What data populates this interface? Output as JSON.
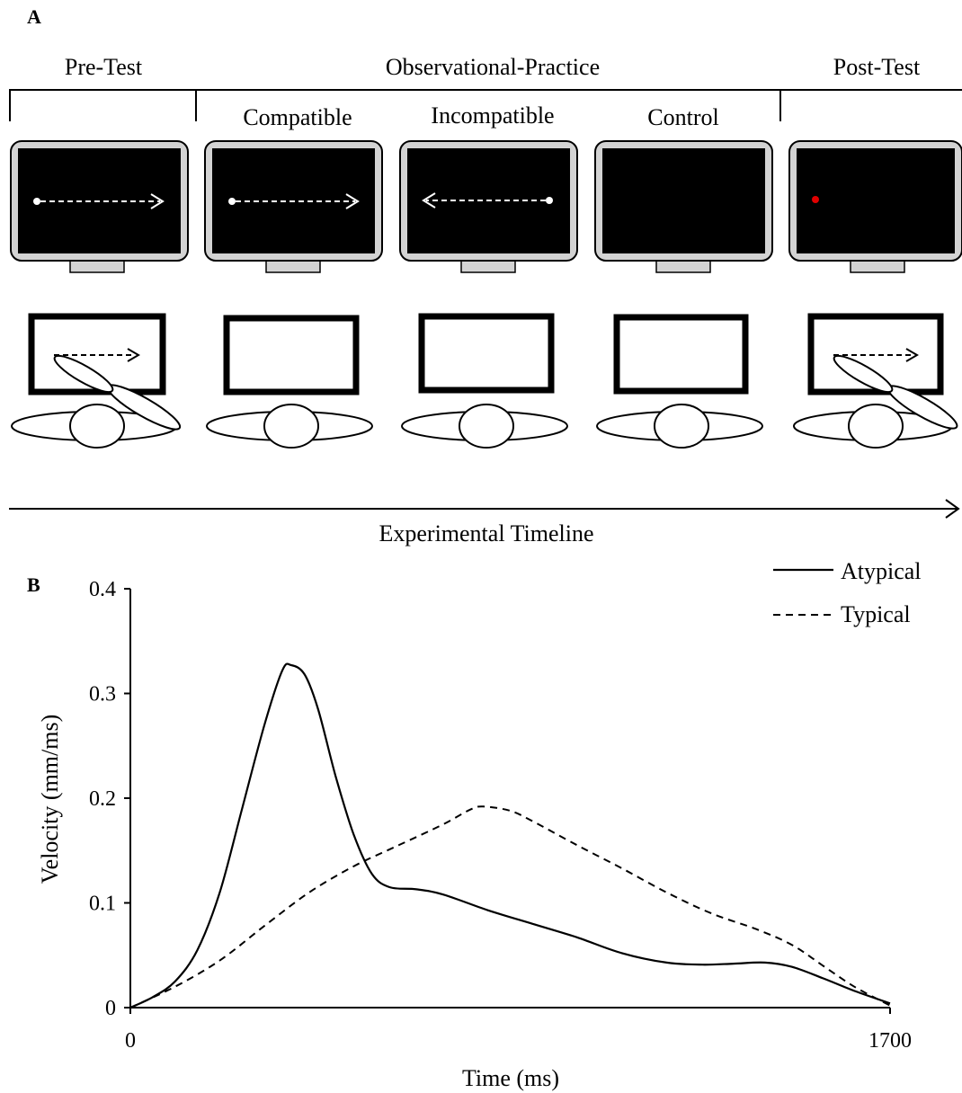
{
  "panel_a": {
    "letter": "A",
    "phases": {
      "pre_test": "Pre-Test",
      "observational_practice": "Observational-Practice",
      "post_test": "Post-Test"
    },
    "conditions": {
      "compatible": "Compatible",
      "incompatible": "Incompatible",
      "control": "Control"
    },
    "timeline_label": "Experimental Timeline",
    "monitor_colors": {
      "bezel": "#d3d3d3",
      "screen": "#000000",
      "red_dot": "#e00000"
    }
  },
  "panel_b": {
    "letter": "B",
    "chart_data": {
      "type": "line",
      "title": "",
      "xlabel": "Time (ms)",
      "ylabel": "Velocity (mm/ms)",
      "xlim": [
        0,
        1700
      ],
      "ylim": [
        0,
        0.4
      ],
      "x_ticks": [
        "0",
        "1700"
      ],
      "y_ticks": [
        "0",
        "0.1",
        "0.2",
        "0.3",
        "0.4"
      ],
      "legend_position": "top-right",
      "grid": false,
      "series": [
        {
          "name": "Atypical",
          "style": "solid",
          "points": [
            [
              0,
              0
            ],
            [
              50,
              0.01
            ],
            [
              100,
              0.025
            ],
            [
              150,
              0.055
            ],
            [
              200,
              0.11
            ],
            [
              250,
              0.19
            ],
            [
              300,
              0.27
            ],
            [
              340,
              0.322
            ],
            [
              360,
              0.327
            ],
            [
              390,
              0.318
            ],
            [
              420,
              0.285
            ],
            [
              460,
              0.22
            ],
            [
              500,
              0.165
            ],
            [
              540,
              0.128
            ],
            [
              580,
              0.115
            ],
            [
              640,
              0.113
            ],
            [
              700,
              0.108
            ],
            [
              800,
              0.093
            ],
            [
              900,
              0.08
            ],
            [
              1000,
              0.067
            ],
            [
              1100,
              0.052
            ],
            [
              1200,
              0.043
            ],
            [
              1280,
              0.041
            ],
            [
              1350,
              0.042
            ],
            [
              1420,
              0.043
            ],
            [
              1480,
              0.039
            ],
            [
              1550,
              0.028
            ],
            [
              1620,
              0.016
            ],
            [
              1700,
              0.004
            ]
          ]
        },
        {
          "name": "Typical",
          "style": "dashed",
          "points": [
            [
              0,
              0
            ],
            [
              100,
              0.02
            ],
            [
              200,
              0.045
            ],
            [
              300,
              0.078
            ],
            [
              400,
              0.11
            ],
            [
              500,
              0.135
            ],
            [
              600,
              0.155
            ],
            [
              700,
              0.175
            ],
            [
              760,
              0.189
            ],
            [
              790,
              0.192
            ],
            [
              850,
              0.188
            ],
            [
              900,
              0.178
            ],
            [
              1000,
              0.155
            ],
            [
              1100,
              0.133
            ],
            [
              1200,
              0.11
            ],
            [
              1300,
              0.09
            ],
            [
              1400,
              0.075
            ],
            [
              1480,
              0.06
            ],
            [
              1550,
              0.04
            ],
            [
              1620,
              0.02
            ],
            [
              1700,
              0.002
            ]
          ]
        }
      ]
    }
  }
}
